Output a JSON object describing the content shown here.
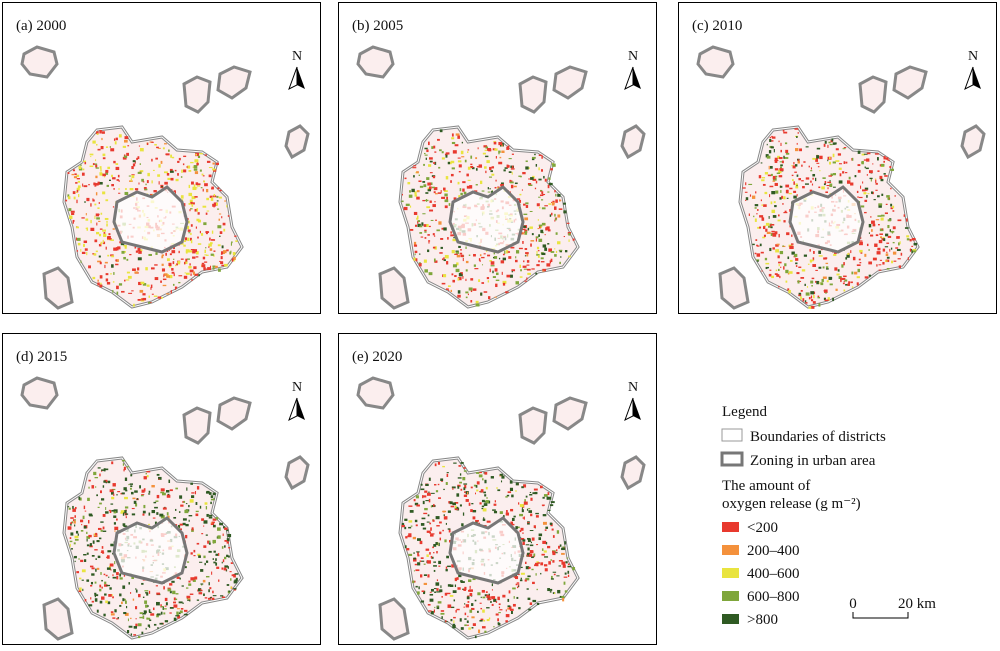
{
  "panels": [
    {
      "label": "(a) 2000",
      "north": "N"
    },
    {
      "label": "(b) 2005",
      "north": "N"
    },
    {
      "label": "(c) 2010",
      "north": "N"
    },
    {
      "label": "(d) 2015",
      "north": "N"
    },
    {
      "label": "(e) 2020",
      "north": "N"
    }
  ],
  "legend": {
    "title": "Legend",
    "boundaries": "Boundaries of districts",
    "zoning": "Zoning in urban area",
    "heading": [
      "The amount of",
      "oxygen release (g m⁻²)"
    ],
    "classes": [
      {
        "label": "<200",
        "color": "#e8392e"
      },
      {
        "label": "200–400",
        "color": "#f4913c"
      },
      {
        "label": "400–600",
        "color": "#e9e43f"
      },
      {
        "label": "600–800",
        "color": "#7fa63b"
      },
      {
        "label": ">800",
        "color": "#2f5a23"
      }
    ]
  },
  "scale": {
    "start": "0",
    "end": "20 km"
  }
}
